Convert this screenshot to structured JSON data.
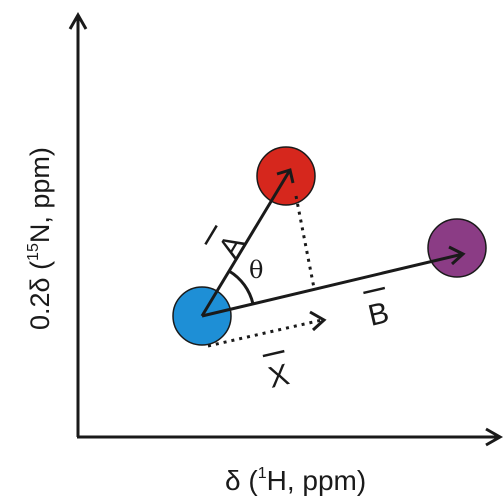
{
  "axes": {
    "x_label_pre": "δ (",
    "x_label_sup": "1",
    "x_label_post": "H, ppm)",
    "y_label_pre": "0.2δ (",
    "y_label_sup": "15",
    "y_label_post": "N, ppm)"
  },
  "vectors": {
    "a": "A",
    "b": "B",
    "x": "X"
  },
  "angle_label": "θ",
  "colors": {
    "origin_blue": "#1e8fd6",
    "point_red": "#d6271d",
    "point_purple": "#8b3c85",
    "line": "#1a1a1a"
  }
}
